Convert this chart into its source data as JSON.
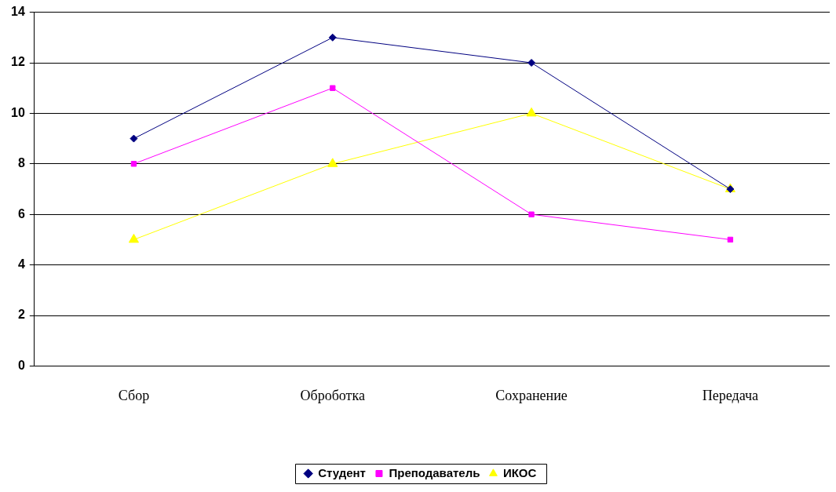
{
  "chart_data": {
    "type": "line",
    "categories": [
      "Сбор",
      "Оброботка",
      "Сохранение",
      "Передача"
    ],
    "series": [
      {
        "name": "Студент",
        "color": "#000080",
        "marker": "diamond",
        "values": [
          9,
          13,
          12,
          7
        ]
      },
      {
        "name": "Преподаватель",
        "color": "#ff00ff",
        "marker": "square",
        "values": [
          8,
          11,
          6,
          5
        ]
      },
      {
        "name": "ИКОС",
        "color": "#ffff00",
        "marker": "triangle",
        "values": [
          5,
          8,
          10,
          7
        ]
      }
    ],
    "ylim": [
      0,
      14
    ],
    "yticks": [
      0,
      2,
      4,
      6,
      8,
      10,
      12,
      14
    ],
    "grid": "y",
    "legend": "bottom"
  }
}
